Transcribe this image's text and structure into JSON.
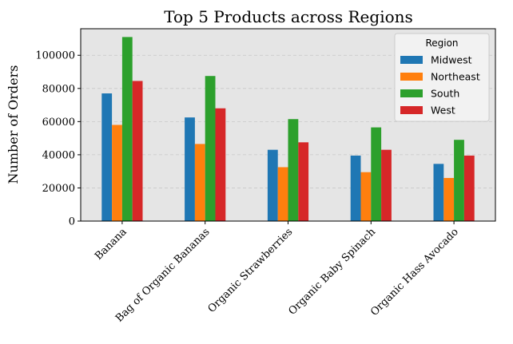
{
  "chart_data": {
    "type": "bar",
    "title": "Top 5 Products across Regions",
    "xlabel": "",
    "ylabel": "Number of Orders",
    "categories": [
      "Banana",
      "Bag of Organic Bananas",
      "Organic Strawberries",
      "Organic Baby Spinach",
      "Organic Hass Avocado"
    ],
    "series": [
      {
        "name": "Midwest",
        "color": "#1f77b4",
        "values": [
          77000,
          62500,
          43000,
          39500,
          34500
        ]
      },
      {
        "name": "Northeast",
        "color": "#ff7f0e",
        "values": [
          58000,
          46500,
          32500,
          29500,
          26000
        ]
      },
      {
        "name": "South",
        "color": "#2ca02c",
        "values": [
          111000,
          87500,
          61500,
          56500,
          49000
        ]
      },
      {
        "name": "West",
        "color": "#d62728",
        "values": [
          84500,
          68000,
          47500,
          43000,
          39500
        ]
      }
    ],
    "ylim": [
      0,
      116000
    ],
    "yticks": [
      0,
      20000,
      40000,
      60000,
      80000,
      100000
    ],
    "grid": "horizontal dashed",
    "legend_title": "Region",
    "legend_position": "top-right",
    "background": "#e5e5e5"
  }
}
